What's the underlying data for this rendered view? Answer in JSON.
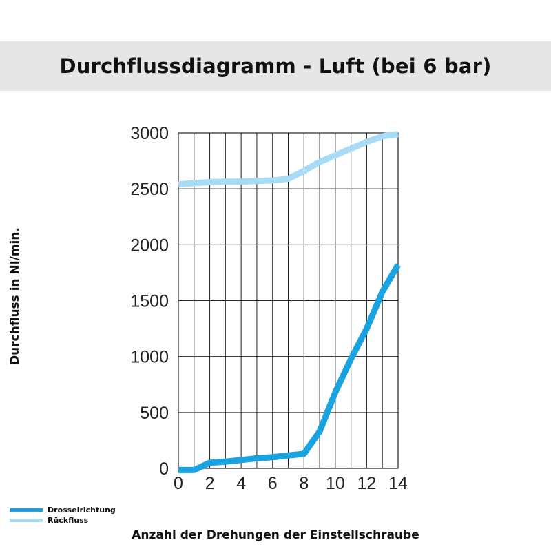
{
  "chart_data": {
    "type": "line",
    "title": "Durchflussdiagramm - Luft (bei 6 bar)",
    "xlabel": "Anzahl der Drehungen der Einstellschraube",
    "ylabel": "Durchfluss in Nl/min.",
    "xlim": [
      0,
      14
    ],
    "ylim": [
      0,
      3000
    ],
    "xticks": [
      0,
      2,
      4,
      6,
      8,
      10,
      12,
      14
    ],
    "yticks": [
      0,
      500,
      1000,
      1500,
      2000,
      2500,
      3000
    ],
    "grid": true,
    "legend_position": "bottom-left",
    "series": [
      {
        "name": "Drosselrichtung",
        "color": "#1aa3e0",
        "x": [
          0,
          1,
          2,
          3,
          4,
          5,
          6,
          7,
          8,
          9,
          10,
          11,
          12,
          13,
          14
        ],
        "y": [
          -15,
          -15,
          50,
          60,
          75,
          90,
          100,
          115,
          130,
          330,
          680,
          980,
          1250,
          1580,
          1820
        ]
      },
      {
        "name": "Rückfluss",
        "color": "#a8dcf6",
        "x": [
          0,
          1,
          2,
          3,
          4,
          5,
          6,
          7,
          8,
          9,
          10,
          11,
          12,
          13,
          14
        ],
        "y": [
          2540,
          2550,
          2560,
          2565,
          2565,
          2570,
          2575,
          2590,
          2660,
          2740,
          2800,
          2860,
          2920,
          2970,
          2990
        ]
      }
    ]
  }
}
